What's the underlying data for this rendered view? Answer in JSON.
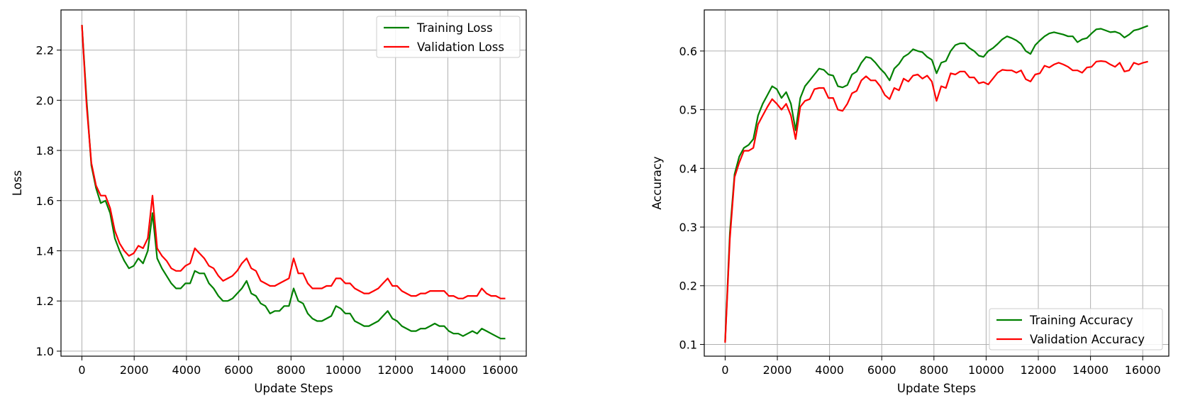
{
  "chart_data": [
    {
      "type": "line",
      "xlabel": "Update Steps",
      "ylabel": "Loss",
      "xlim": [
        -800,
        17000
      ],
      "ylim": [
        0.98,
        2.36
      ],
      "xticks": [
        0,
        2000,
        4000,
        6000,
        8000,
        10000,
        12000,
        14000,
        16000
      ],
      "yticks": [
        1.0,
        1.2,
        1.4,
        1.6,
        1.8,
        2.0,
        2.2
      ],
      "ytick_format": 1,
      "grid": true,
      "legend_position": "top-right",
      "series": [
        {
          "name": "Training Loss",
          "color": "#008000",
          "x": [
            0,
            180,
            360,
            540,
            720,
            900,
            1080,
            1260,
            1440,
            1620,
            1800,
            1980,
            2160,
            2340,
            2520,
            2700,
            2880,
            3060,
            3240,
            3420,
            3600,
            3780,
            3960,
            4140,
            4320,
            4500,
            4680,
            4860,
            5040,
            5220,
            5400,
            5580,
            5760,
            5940,
            6120,
            6300,
            6480,
            6660,
            6840,
            7020,
            7200,
            7380,
            7560,
            7740,
            7920,
            8100,
            8280,
            8460,
            8640,
            8820,
            9000,
            9180,
            9360,
            9540,
            9720,
            9900,
            10080,
            10260,
            10440,
            10620,
            10800,
            10980,
            11160,
            11340,
            11520,
            11700,
            11880,
            12060,
            12240,
            12420,
            12600,
            12780,
            12960,
            13140,
            13320,
            13500,
            13680,
            13860,
            14040,
            14220,
            14400,
            14580,
            14760,
            14940,
            15120,
            15300,
            15480,
            15660,
            15840,
            16020,
            16200
          ],
          "values": [
            2.3,
            2.0,
            1.74,
            1.65,
            1.59,
            1.6,
            1.55,
            1.45,
            1.4,
            1.36,
            1.33,
            1.34,
            1.37,
            1.35,
            1.4,
            1.55,
            1.37,
            1.33,
            1.3,
            1.27,
            1.25,
            1.25,
            1.27,
            1.27,
            1.32,
            1.31,
            1.31,
            1.27,
            1.25,
            1.22,
            1.2,
            1.2,
            1.21,
            1.23,
            1.25,
            1.28,
            1.23,
            1.22,
            1.19,
            1.18,
            1.15,
            1.16,
            1.16,
            1.18,
            1.18,
            1.25,
            1.2,
            1.19,
            1.15,
            1.13,
            1.12,
            1.12,
            1.13,
            1.14,
            1.18,
            1.17,
            1.15,
            1.15,
            1.12,
            1.11,
            1.1,
            1.1,
            1.11,
            1.12,
            1.14,
            1.16,
            1.13,
            1.12,
            1.1,
            1.09,
            1.08,
            1.08,
            1.09,
            1.09,
            1.1,
            1.11,
            1.1,
            1.1,
            1.08,
            1.07,
            1.07,
            1.06,
            1.07,
            1.08,
            1.07,
            1.09,
            1.08,
            1.07,
            1.06,
            1.05,
            1.05
          ]
        },
        {
          "name": "Validation Loss",
          "color": "#ff0000",
          "x": [
            0,
            180,
            360,
            540,
            720,
            900,
            1080,
            1260,
            1440,
            1620,
            1800,
            1980,
            2160,
            2340,
            2520,
            2700,
            2880,
            3060,
            3240,
            3420,
            3600,
            3780,
            3960,
            4140,
            4320,
            4500,
            4680,
            4860,
            5040,
            5220,
            5400,
            5580,
            5760,
            5940,
            6120,
            6300,
            6480,
            6660,
            6840,
            7020,
            7200,
            7380,
            7560,
            7740,
            7920,
            8100,
            8280,
            8460,
            8640,
            8820,
            9000,
            9180,
            9360,
            9540,
            9720,
            9900,
            10080,
            10260,
            10440,
            10620,
            10800,
            10980,
            11160,
            11340,
            11520,
            11700,
            11880,
            12060,
            12240,
            12420,
            12600,
            12780,
            12960,
            13140,
            13320,
            13500,
            13680,
            13860,
            14040,
            14220,
            14400,
            14580,
            14760,
            14940,
            15120,
            15300,
            15480,
            15660,
            15840,
            16020,
            16200
          ],
          "values": [
            2.3,
            1.98,
            1.75,
            1.66,
            1.62,
            1.62,
            1.57,
            1.48,
            1.43,
            1.4,
            1.38,
            1.39,
            1.42,
            1.41,
            1.45,
            1.62,
            1.41,
            1.38,
            1.36,
            1.33,
            1.32,
            1.32,
            1.34,
            1.35,
            1.41,
            1.39,
            1.37,
            1.34,
            1.33,
            1.3,
            1.28,
            1.29,
            1.3,
            1.32,
            1.35,
            1.37,
            1.33,
            1.32,
            1.28,
            1.27,
            1.26,
            1.26,
            1.27,
            1.28,
            1.29,
            1.37,
            1.31,
            1.31,
            1.27,
            1.25,
            1.25,
            1.25,
            1.26,
            1.26,
            1.29,
            1.29,
            1.27,
            1.27,
            1.25,
            1.24,
            1.23,
            1.23,
            1.24,
            1.25,
            1.27,
            1.29,
            1.26,
            1.26,
            1.24,
            1.23,
            1.22,
            1.22,
            1.23,
            1.23,
            1.24,
            1.24,
            1.24,
            1.24,
            1.22,
            1.22,
            1.21,
            1.21,
            1.22,
            1.22,
            1.22,
            1.25,
            1.23,
            1.22,
            1.22,
            1.21,
            1.21
          ]
        }
      ]
    },
    {
      "type": "line",
      "xlabel": "Update Steps",
      "ylabel": "Accuracy",
      "xlim": [
        -800,
        17000
      ],
      "ylim": [
        0.08,
        0.67
      ],
      "xticks": [
        0,
        2000,
        4000,
        6000,
        8000,
        10000,
        12000,
        14000,
        16000
      ],
      "yticks": [
        0.1,
        0.2,
        0.3,
        0.4,
        0.5,
        0.6
      ],
      "ytick_format": 1,
      "grid": true,
      "legend_position": "bottom-right",
      "series": [
        {
          "name": "Training Accuracy",
          "color": "#008000",
          "x": [
            0,
            180,
            360,
            540,
            720,
            900,
            1080,
            1260,
            1440,
            1620,
            1800,
            1980,
            2160,
            2340,
            2520,
            2700,
            2880,
            3060,
            3240,
            3420,
            3600,
            3780,
            3960,
            4140,
            4320,
            4500,
            4680,
            4860,
            5040,
            5220,
            5400,
            5580,
            5760,
            5940,
            6120,
            6300,
            6480,
            6660,
            6840,
            7020,
            7200,
            7380,
            7560,
            7740,
            7920,
            8100,
            8280,
            8460,
            8640,
            8820,
            9000,
            9180,
            9360,
            9540,
            9720,
            9900,
            10080,
            10260,
            10440,
            10620,
            10800,
            10980,
            11160,
            11340,
            11520,
            11700,
            11880,
            12060,
            12240,
            12420,
            12600,
            12780,
            12960,
            13140,
            13320,
            13500,
            13680,
            13860,
            14040,
            14220,
            14400,
            14580,
            14760,
            14940,
            15120,
            15300,
            15480,
            15660,
            15840,
            16020,
            16200
          ],
          "values": [
            0.105,
            0.29,
            0.39,
            0.42,
            0.435,
            0.44,
            0.45,
            0.49,
            0.51,
            0.525,
            0.54,
            0.535,
            0.52,
            0.53,
            0.51,
            0.465,
            0.52,
            0.54,
            0.55,
            0.56,
            0.57,
            0.568,
            0.56,
            0.558,
            0.54,
            0.538,
            0.542,
            0.56,
            0.565,
            0.58,
            0.59,
            0.588,
            0.58,
            0.57,
            0.562,
            0.55,
            0.57,
            0.578,
            0.59,
            0.595,
            0.603,
            0.6,
            0.598,
            0.59,
            0.585,
            0.562,
            0.58,
            0.583,
            0.6,
            0.61,
            0.613,
            0.613,
            0.605,
            0.6,
            0.592,
            0.59,
            0.6,
            0.605,
            0.612,
            0.62,
            0.625,
            0.622,
            0.618,
            0.612,
            0.6,
            0.595,
            0.61,
            0.618,
            0.625,
            0.63,
            0.632,
            0.63,
            0.628,
            0.625,
            0.625,
            0.615,
            0.62,
            0.622,
            0.63,
            0.637,
            0.638,
            0.635,
            0.632,
            0.633,
            0.63,
            0.623,
            0.628,
            0.635,
            0.637,
            0.64,
            0.643
          ]
        },
        {
          "name": "Validation Accuracy",
          "color": "#ff0000",
          "x": [
            0,
            180,
            360,
            540,
            720,
            900,
            1080,
            1260,
            1440,
            1620,
            1800,
            1980,
            2160,
            2340,
            2520,
            2700,
            2880,
            3060,
            3240,
            3420,
            3600,
            3780,
            3960,
            4140,
            4320,
            4500,
            4680,
            4860,
            5040,
            5220,
            5400,
            5580,
            5760,
            5940,
            6120,
            6300,
            6480,
            6660,
            6840,
            7020,
            7200,
            7380,
            7560,
            7740,
            7920,
            8100,
            8280,
            8460,
            8640,
            8820,
            9000,
            9180,
            9360,
            9540,
            9720,
            9900,
            10080,
            10260,
            10440,
            10620,
            10800,
            10980,
            11160,
            11340,
            11520,
            11700,
            11880,
            12060,
            12240,
            12420,
            12600,
            12780,
            12960,
            13140,
            13320,
            13500,
            13680,
            13860,
            14040,
            14220,
            14400,
            14580,
            14760,
            14940,
            15120,
            15300,
            15480,
            15660,
            15840,
            16020,
            16200
          ],
          "values": [
            0.103,
            0.28,
            0.385,
            0.41,
            0.43,
            0.43,
            0.435,
            0.475,
            0.49,
            0.505,
            0.518,
            0.51,
            0.5,
            0.51,
            0.49,
            0.45,
            0.505,
            0.515,
            0.518,
            0.535,
            0.537,
            0.537,
            0.52,
            0.52,
            0.5,
            0.498,
            0.51,
            0.528,
            0.532,
            0.55,
            0.557,
            0.55,
            0.55,
            0.54,
            0.525,
            0.518,
            0.537,
            0.533,
            0.553,
            0.548,
            0.558,
            0.56,
            0.553,
            0.558,
            0.548,
            0.515,
            0.54,
            0.537,
            0.562,
            0.56,
            0.565,
            0.565,
            0.555,
            0.555,
            0.545,
            0.547,
            0.543,
            0.553,
            0.563,
            0.568,
            0.567,
            0.567,
            0.563,
            0.567,
            0.552,
            0.548,
            0.56,
            0.562,
            0.575,
            0.572,
            0.577,
            0.58,
            0.577,
            0.573,
            0.567,
            0.567,
            0.563,
            0.572,
            0.573,
            0.582,
            0.583,
            0.582,
            0.577,
            0.573,
            0.58,
            0.565,
            0.567,
            0.58,
            0.577,
            0.58,
            0.582
          ]
        }
      ]
    }
  ]
}
